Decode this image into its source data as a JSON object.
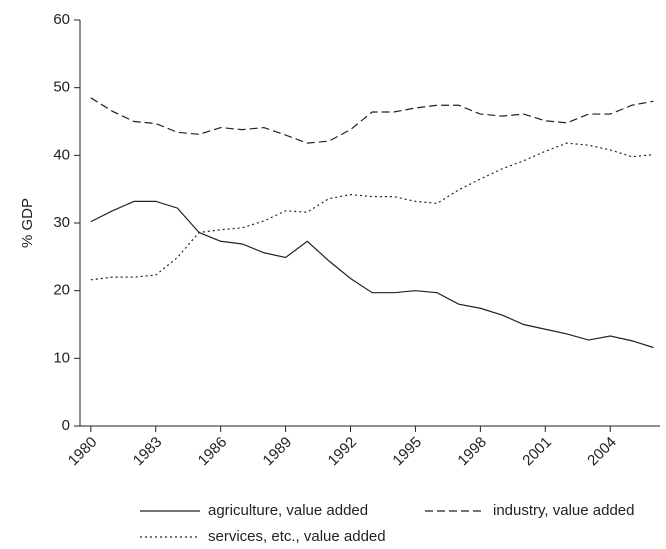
{
  "chart_data": {
    "type": "line",
    "y_label": "% GDP",
    "x": [
      1980,
      1981,
      1982,
      1983,
      1984,
      1985,
      1986,
      1987,
      1988,
      1989,
      1990,
      1991,
      1992,
      1993,
      1994,
      1995,
      1996,
      1997,
      1998,
      1999,
      2000,
      2001,
      2002,
      2003,
      2004,
      2005,
      2006
    ],
    "series": [
      {
        "name": "agriculture, value added",
        "color": "#222222",
        "dash": "solid",
        "values": [
          30.2,
          31.8,
          33.2,
          33.2,
          32.2,
          28.6,
          27.3,
          26.9,
          25.6,
          24.9,
          27.3,
          24.4,
          21.8,
          19.7,
          19.7,
          20.0,
          19.7,
          18.0,
          17.4,
          16.4,
          15.0,
          14.3,
          13.6,
          12.7,
          13.3,
          12.6,
          11.6
        ]
      },
      {
        "name": "industry, value added",
        "color": "#222222",
        "dash": "dashed",
        "values": [
          48.5,
          46.5,
          45.0,
          44.7,
          43.4,
          43.1,
          44.1,
          43.8,
          44.1,
          43.0,
          41.8,
          42.1,
          43.8,
          46.4,
          46.4,
          47.0,
          47.4,
          47.4,
          46.1,
          45.8,
          46.1,
          45.1,
          44.8,
          46.1,
          46.1,
          47.4,
          48.0
        ]
      },
      {
        "name": "services, etc., value added",
        "color": "#222222",
        "dash": "dotted",
        "values": [
          21.6,
          22.0,
          22.0,
          22.3,
          24.9,
          28.6,
          29.0,
          29.3,
          30.3,
          31.8,
          31.6,
          33.6,
          34.2,
          33.9,
          33.9,
          33.2,
          32.9,
          34.9,
          36.5,
          38.0,
          39.2,
          40.6,
          41.8,
          41.5,
          40.8,
          39.8,
          40.1
        ]
      }
    ],
    "xlim": [
      1979.5,
      2006.3
    ],
    "xticks": [
      1980,
      1983,
      1986,
      1989,
      1992,
      1995,
      1998,
      2001,
      2004
    ],
    "ylim": [
      0,
      60
    ],
    "yticks": [
      0,
      10,
      20,
      30,
      40,
      50,
      60
    ],
    "grid": false,
    "legend": "bottom"
  }
}
